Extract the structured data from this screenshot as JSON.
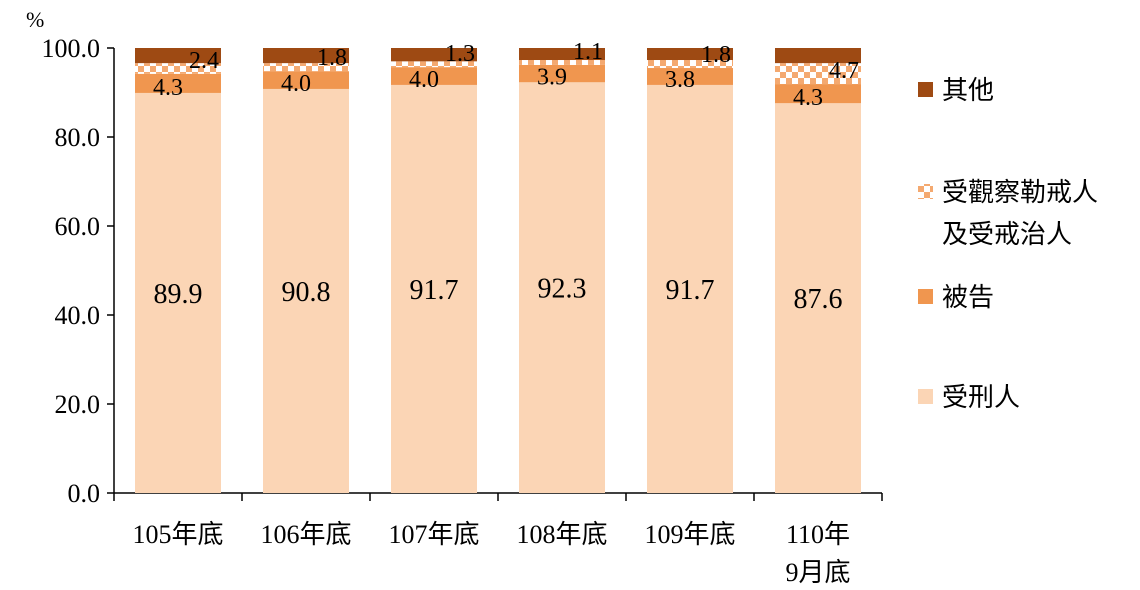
{
  "chart_data": {
    "type": "bar",
    "stacked": true,
    "unit": "%",
    "categories": [
      [
        "105年底"
      ],
      [
        "106年底"
      ],
      [
        "107年底"
      ],
      [
        "108年底"
      ],
      [
        "109年底"
      ],
      [
        "110年",
        "9月底"
      ]
    ],
    "series": [
      {
        "name": "受刑人",
        "values": [
          89.9,
          90.8,
          91.7,
          92.3,
          91.7,
          87.6
        ],
        "color": "#fbd5b5",
        "pattern": false
      },
      {
        "name": "被告",
        "values": [
          4.3,
          4.0,
          4.0,
          3.9,
          3.8,
          4.3
        ],
        "color": "#f0964f",
        "pattern": false
      },
      {
        "name": [
          "受觀察勒戒人",
          "及受戒治人"
        ],
        "values": [
          2.4,
          1.8,
          1.3,
          1.1,
          1.8,
          4.7
        ],
        "color": "#f4a970",
        "pattern": true
      },
      {
        "name": "其他",
        "values": [
          3.4,
          3.4,
          3.0,
          2.7,
          2.7,
          3.4
        ],
        "color": "#9e4a13",
        "pattern": false
      }
    ],
    "data_labels": [
      [
        "89.9",
        "90.8",
        "91.7",
        "92.3",
        "91.7",
        "87.6"
      ],
      [
        "4.3",
        "4.0",
        "4.0",
        "3.9",
        "3.8",
        "4.3"
      ],
      [
        "2.4",
        "1.8",
        "1.3",
        "1.1",
        "1.8",
        "4.7"
      ]
    ],
    "yticks": [
      "0.0",
      "20.0",
      "40.0",
      "60.0",
      "80.0",
      "100.0"
    ],
    "ylim": [
      0,
      100
    ],
    "legend_position": "right",
    "legend_order": [
      3,
      2,
      1,
      0
    ],
    "grid": false
  }
}
